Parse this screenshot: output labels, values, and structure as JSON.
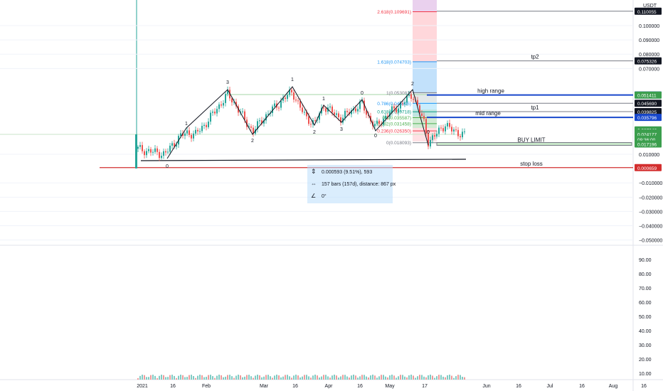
{
  "chart_data": {
    "type": "candlestick",
    "currency": "USDT",
    "price_axis": {
      "range": [
        -0.055,
        0.115
      ],
      "ticks": [
        "0.100000",
        "0.090000",
        "0.080000",
        "0.070000",
        "0.010000",
        "−0.010000",
        "−0.020000",
        "−0.030000",
        "−0.040000",
        "−0.050000"
      ]
    },
    "price_badges": [
      {
        "value": "0.110055",
        "bg": "#131722",
        "fg": "#ffffff",
        "price": 0.110055
      },
      {
        "value": "0.075326",
        "bg": "#131722",
        "fg": "#ffffff",
        "price": 0.075326
      },
      {
        "value": "0.051450",
        "bg": "#1848cc",
        "fg": "#ffffff",
        "price": 0.05145
      },
      {
        "value": "0.051411",
        "bg": "#3b9e4d",
        "fg": "#ffffff",
        "price": 0.051411
      },
      {
        "value": "0.045690",
        "bg": "#131722",
        "fg": "#ffffff",
        "price": 0.04569
      },
      {
        "value": "0.039825",
        "bg": "#131722",
        "fg": "#ffffff",
        "price": 0.039825
      },
      {
        "value": "0.035796",
        "bg": "#1848cc",
        "fg": "#ffffff",
        "price": 0.035796
      },
      {
        "value": "0.027046",
        "bg": "#3b9e4d",
        "fg": "#ffffff",
        "price": 0.027046
      },
      {
        "value": "0.024972",
        "bg": "#3b9e4d",
        "fg": "#ffffff",
        "price": 0.024972
      },
      {
        "value": "0.024177",
        "bg": "#3b9e4d",
        "fg": "#ffffff",
        "price": 0.024177
      },
      {
        "value": "09:36:00",
        "bg": "#3b9e4d",
        "fg": "#ffffff",
        "price": 0.0205
      },
      {
        "value": "0.017196",
        "bg": "#3b9e4d",
        "fg": "#ffffff",
        "price": 0.017196
      },
      {
        "value": "0.000659",
        "bg": "#d32f2f",
        "fg": "#ffffff",
        "price": 0.000659
      }
    ],
    "volume_axis": {
      "ticks": [
        "90.00",
        "80.00",
        "70.00",
        "60.00",
        "50.00",
        "40.00",
        "30.00",
        "20.00",
        "10.00"
      ]
    },
    "time_axis": {
      "ticks": [
        "2021",
        "16",
        "Feb",
        "Mar",
        "16",
        "Apr",
        "16",
        "May",
        "17",
        "Jun",
        "16",
        "Jul",
        "16",
        "Aug",
        "16"
      ]
    },
    "fibonacci": [
      {
        "label": "2.618(0.109691)",
        "price": 0.109691,
        "color": "#f23645"
      },
      {
        "label": "1.618(0.074703)",
        "price": 0.074703,
        "color": "#2196f3"
      },
      {
        "label": "1(0.053081)",
        "price": 0.053081,
        "color": "#787b86"
      },
      {
        "label": "0.786(0.045595)",
        "price": 0.045595,
        "color": "#2196f3"
      },
      {
        "label": "0.618(0.039718)",
        "price": 0.039718,
        "color": "#089981"
      },
      {
        "label": "0.5(0.035587)",
        "price": 0.035587,
        "color": "#4caf50"
      },
      {
        "label": "0.382(0.031458)",
        "price": 0.031458,
        "color": "#4caf50"
      },
      {
        "label": "0.236(0.026350)",
        "price": 0.02635,
        "color": "#f23645"
      },
      {
        "label": "0(0.018093)",
        "price": 0.018093,
        "color": "#787b86"
      }
    ],
    "annotations": [
      {
        "text": "tp2",
        "price": 0.075326
      },
      {
        "text": "high range",
        "price": 0.05145
      },
      {
        "text": "tp1",
        "price": 0.039825
      },
      {
        "text": "mid range",
        "price": 0.035796
      },
      {
        "text": "BUY LIMIT",
        "price": 0.017196
      },
      {
        "text": "stop loss",
        "price": 0.000659
      }
    ],
    "wave_labels": [
      "1",
      "3",
      "2",
      "1",
      "2",
      "3",
      "0",
      "0",
      "1",
      "0",
      "2",
      "0"
    ],
    "measure_box": {
      "price_range": "0.000593 (9.51%), 593",
      "bars_range": "157 bars (157d), distance: 867 px",
      "angle": "0°"
    },
    "colors": {
      "up": "#26a69a",
      "down": "#ef5350",
      "stop": "#d32f2f",
      "range": "#1848cc"
    }
  }
}
